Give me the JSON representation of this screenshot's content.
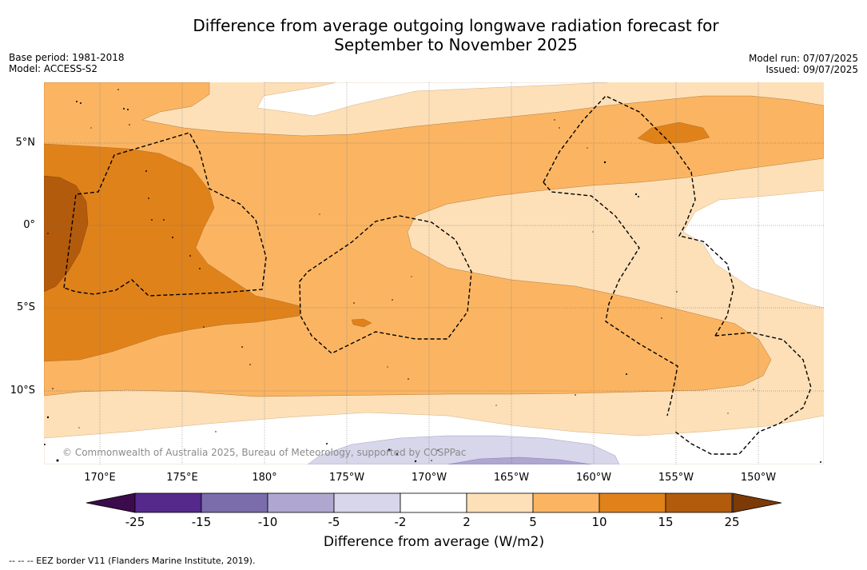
{
  "title": "Difference from average outgoing longwave radiation forecast for September to November 2025",
  "title_line1": "Difference from average outgoing longwave radiation forecast for",
  "title_line2": "September to November 2025",
  "base_period": "Base period: 1981-2018",
  "model": "Model: ACCESS-S2",
  "model_run": "Model run: 07/07/2025",
  "issued": "Issued: 09/07/2025",
  "copyright": "© Commonwealth of Australia 2025, Bureau of Meteorology, supported by COSPPac",
  "footnote": "-- -- -- EEZ border V11 (Flanders Marine Institute, 2019).",
  "latitudes": [
    {
      "label": "5°N",
      "value": 5
    },
    {
      "label": "0°",
      "value": 0
    },
    {
      "label": "5°S",
      "value": -5
    },
    {
      "label": "10°S",
      "value": -10
    }
  ],
  "longitudes": [
    {
      "label": "170°E",
      "value": 170
    },
    {
      "label": "175°E",
      "value": 175
    },
    {
      "label": "180°",
      "value": 180
    },
    {
      "label": "175°W",
      "value": 185
    },
    {
      "label": "170°W",
      "value": 190
    },
    {
      "label": "165°W",
      "value": 195
    },
    {
      "label": "160°W",
      "value": 200
    },
    {
      "label": "155°W",
      "value": 205
    },
    {
      "label": "150°W",
      "value": 210
    }
  ],
  "colorbar": {
    "title": "Difference from average (W/m2)",
    "labels": [
      "-25",
      "-15",
      "-10",
      "-5",
      "-2",
      "2",
      "5",
      "10",
      "15",
      "25"
    ],
    "colors": [
      "#3c0b4c",
      "#55288c",
      "#7b6cab",
      "#afa7d0",
      "#d7d6ea",
      "#ffffff",
      "#fde0b8",
      "#fbb562",
      "#e0821a",
      "#b35b0c",
      "#7c3a06"
    ]
  },
  "palette": {
    "pale": "#fde0b8",
    "light_orange": "#fbb562",
    "orange": "#e0821a",
    "dark_orange": "#b35b0c",
    "lilac": "#d7d6ea",
    "purple_light": "#afa7d0"
  }
}
